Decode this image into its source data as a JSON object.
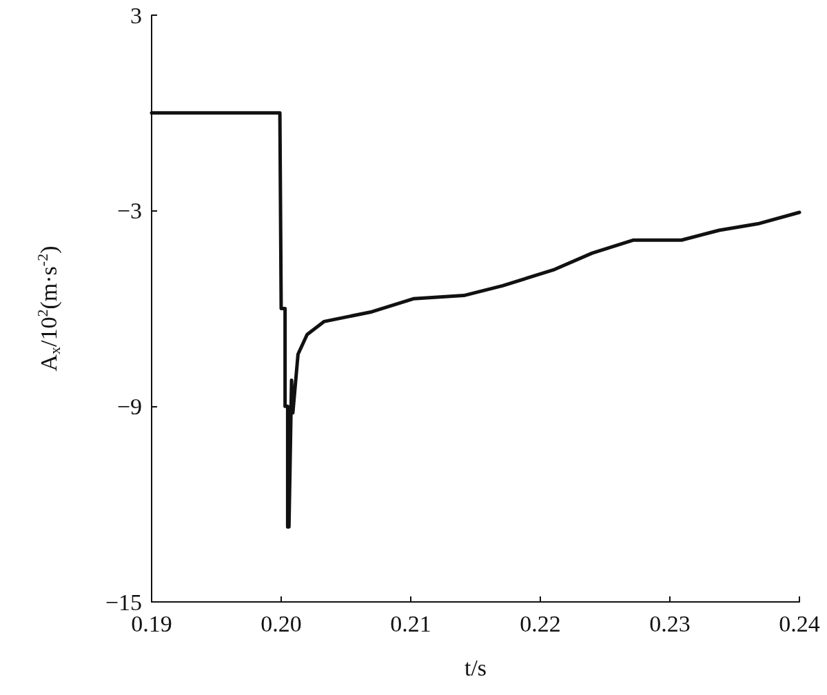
{
  "chart_data": {
    "type": "line",
    "xlabel": "t/s",
    "ylabel": "A$_{x}$/10$^{2}$(m·s$^{-2}$)",
    "x": [
      0.19,
      0.1999,
      0.2,
      0.2003,
      0.2003,
      0.2005,
      0.2005,
      0.2006,
      0.2007,
      0.2008,
      0.2009,
      0.2013,
      0.202,
      0.2033,
      0.207,
      0.2102,
      0.2141,
      0.2171,
      0.2211,
      0.224,
      0.2272,
      0.2309,
      0.2338,
      0.2368,
      0.24
    ],
    "series": [
      {
        "color": "#111111",
        "values": [
          0,
          0,
          -6.0,
          -6.0,
          -9.0,
          -9.0,
          -12.7,
          -12.7,
          -10.5,
          -8.2,
          -9.2,
          -7.4,
          -6.8,
          -6.4,
          -6.1,
          -5.7,
          -5.6,
          -5.3,
          -4.8,
          -4.3,
          -3.9,
          -3.9,
          -3.6,
          -3.4,
          -3.05
        ]
      }
    ],
    "xlim": [
      0.19,
      0.24
    ],
    "xticks": [
      0.19,
      {
        "value": 0.2,
        "label": "0.20"
      },
      0.21,
      0.22,
      0.23,
      0.24
    ],
    "ylim": [
      -15,
      3
    ],
    "yticks": [
      -15,
      -9,
      -3,
      3
    ],
    "grid": false,
    "marker": "none",
    "line_style": "solid"
  }
}
